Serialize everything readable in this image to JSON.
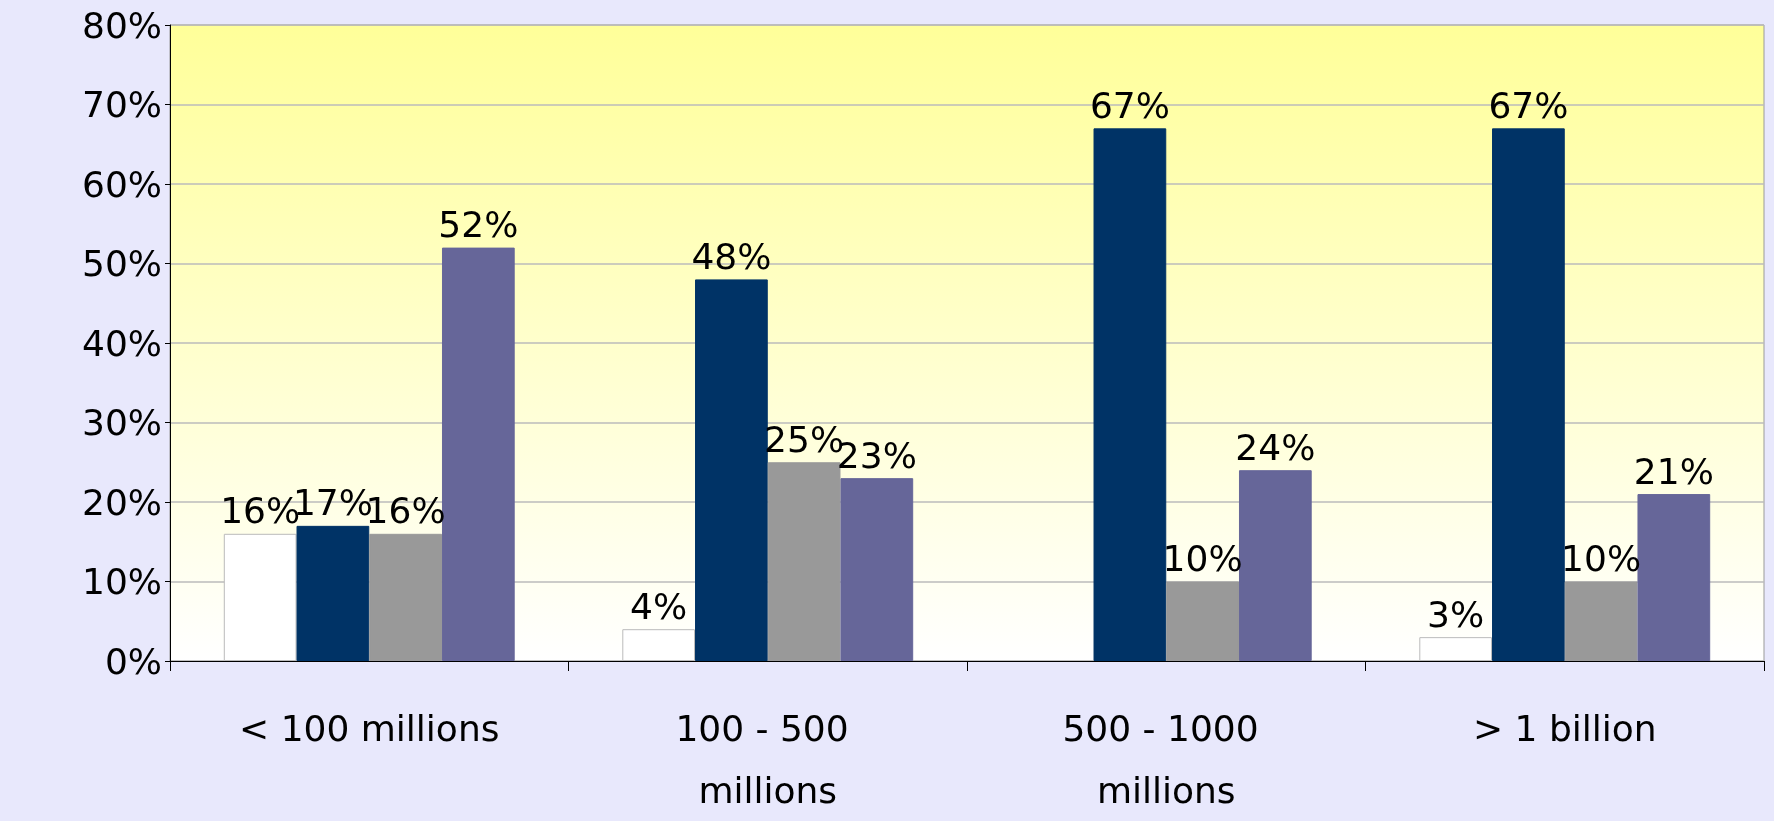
{
  "chart_data": {
    "type": "bar",
    "categories": [
      "< 100 millions",
      "100 - 500 millions",
      "500 - 1000 millions",
      "> 1 billion"
    ],
    "series": [
      {
        "color": "#ffffff",
        "values": [
          16,
          4,
          null,
          3
        ],
        "value_labels": [
          "16%",
          "4%",
          null,
          "3%"
        ]
      },
      {
        "color": "#003366",
        "values": [
          17,
          48,
          67,
          67
        ],
        "value_labels": [
          "17%",
          "48%",
          "67%",
          "67%"
        ]
      },
      {
        "color": "#999999",
        "values": [
          16,
          25,
          10,
          10
        ],
        "value_labels": [
          "16%",
          "25%",
          "10%",
          "10%"
        ]
      },
      {
        "color": "#666699",
        "values": [
          52,
          23,
          24,
          21
        ],
        "value_labels": [
          "52%",
          "23%",
          "24%",
          "21%"
        ]
      }
    ],
    "ylim": [
      0,
      80
    ],
    "yticks": [
      {
        "value": 0,
        "label": "0%"
      },
      {
        "value": 10,
        "label": "10%"
      },
      {
        "value": 20,
        "label": "20%"
      },
      {
        "value": 30,
        "label": "30%"
      },
      {
        "value": 40,
        "label": "40%"
      },
      {
        "value": 50,
        "label": "50%"
      },
      {
        "value": 60,
        "label": "60%"
      },
      {
        "value": 70,
        "label": "70%"
      },
      {
        "value": 80,
        "label": "80%"
      }
    ],
    "grid": "y"
  }
}
